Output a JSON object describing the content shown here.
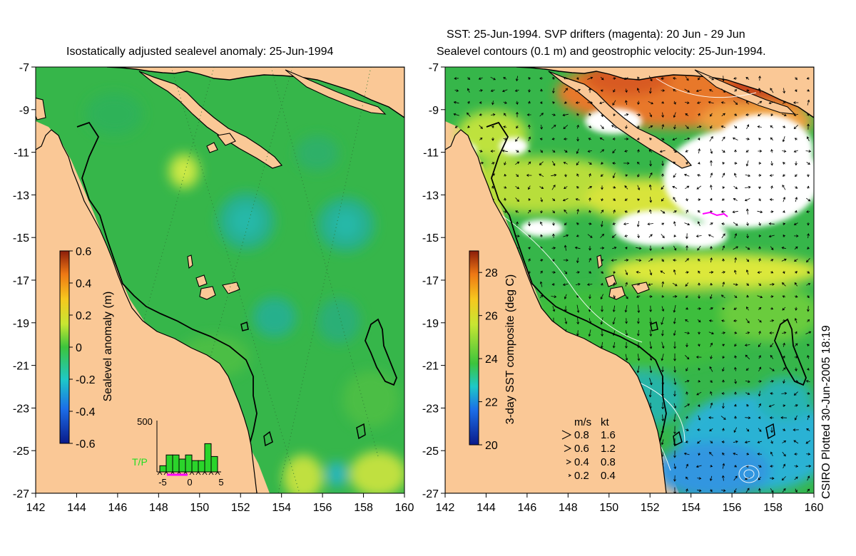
{
  "left_panel": {
    "title": "Isostatically adjusted sealevel anomaly: 25-Jun-1994",
    "x_ticks": [
      "142",
      "144",
      "146",
      "148",
      "150",
      "152",
      "154",
      "156",
      "158",
      "160"
    ],
    "y_ticks": [
      "-7",
      "-9",
      "-11",
      "-13",
      "-15",
      "-17",
      "-19",
      "-21",
      "-23",
      "-25",
      "-27"
    ],
    "colorbar": {
      "label": "Sealevel anomaly (m)",
      "ticks": [
        "0.6",
        "0.4",
        "0.2",
        "0",
        "-0.2",
        "-0.4",
        "-0.6"
      ],
      "range": [
        -0.6,
        0.6
      ]
    },
    "histogram": {
      "max_label": "500",
      "x_labels": [
        "-5",
        "0",
        "5"
      ],
      "label": "T/P",
      "label_color": "#22dd22",
      "bars": [
        0.12,
        0.33,
        0.33,
        0.25,
        0.33,
        0.22,
        0.22,
        0.55,
        0.3
      ]
    }
  },
  "right_panel": {
    "title_line1": "SST: 25-Jun-1994. SVP drifters (magenta): 20 Jun - 29 Jun",
    "title_line2": "Sealevel contours (0.1 m) and geostrophic velocity: 25-Jun-1994.",
    "x_ticks": [
      "142",
      "144",
      "146",
      "148",
      "150",
      "152",
      "154",
      "156",
      "158",
      "160"
    ],
    "y_ticks": [
      "-7",
      "-9",
      "-11",
      "-13",
      "-15",
      "-17",
      "-19",
      "-21",
      "-23",
      "-25",
      "-27"
    ],
    "colorbar": {
      "label": "3-day SST composite (deg C)",
      "ticks": [
        "28",
        "26",
        "24",
        "22",
        "20"
      ],
      "range": [
        20,
        29
      ]
    },
    "velocity_legend": {
      "header_ms": "m/s",
      "header_kt": "kt",
      "rows": [
        {
          "ms": "0.8",
          "kt": "1.6"
        },
        {
          "ms": "0.6",
          "kt": "1.2"
        },
        {
          "ms": "0.4",
          "kt": "0.8"
        },
        {
          "ms": "0.2",
          "kt": "0.4"
        }
      ]
    }
  },
  "credit": "CSIRO Plotted 30-Jun-2005 18:19",
  "colors": {
    "land": "#fac896",
    "ocean_base": "#36b64a",
    "coast": "#000000",
    "drifter": "#ff00ff"
  }
}
